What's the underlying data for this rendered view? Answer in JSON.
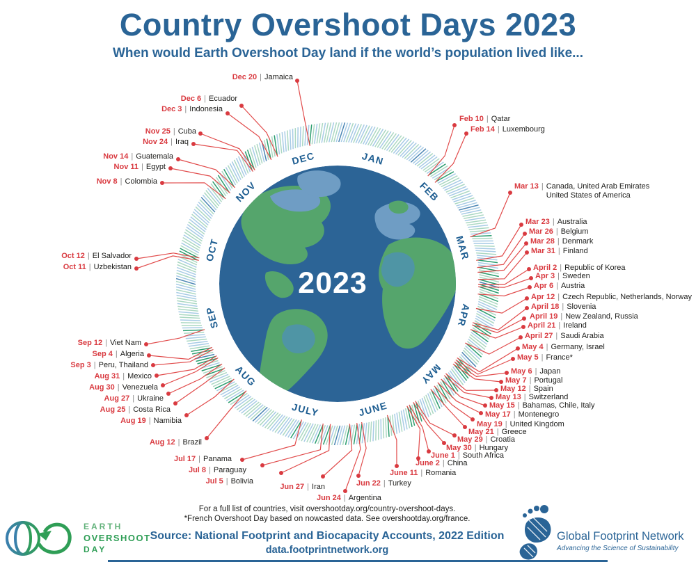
{
  "title": "Country Overshoot Days 2023",
  "subtitle": "When would Earth Overshoot Day land if the world’s population lived like...",
  "center_year": "2023",
  "chart_data": {
    "type": "radial-calendar",
    "year": 2023,
    "months": [
      {
        "label": "JAN",
        "mid_day": 16,
        "flip": false
      },
      {
        "label": "FEB",
        "mid_day": 45.5,
        "flip": false
      },
      {
        "label": "MAR",
        "mid_day": 75,
        "flip": false
      },
      {
        "label": "APR",
        "mid_day": 105.5,
        "flip": false
      },
      {
        "label": "MAY",
        "mid_day": 136,
        "flip": false
      },
      {
        "label": "JUNE",
        "mid_day": 166.5,
        "flip": true
      },
      {
        "label": "JULY",
        "mid_day": 197,
        "flip": true
      },
      {
        "label": "AUG",
        "mid_day": 228,
        "flip": true
      },
      {
        "label": "SEP",
        "mid_day": 258.5,
        "flip": false
      },
      {
        "label": "OCT",
        "mid_day": 289,
        "flip": false
      },
      {
        "label": "NOV",
        "mid_day": 319.5,
        "flip": false
      },
      {
        "label": "DEC",
        "mid_day": 349.5,
        "flip": false
      }
    ],
    "month_start_days": [
      1,
      32,
      60,
      91,
      121,
      152,
      182,
      213,
      244,
      274,
      305,
      335
    ],
    "entries": [
      {
        "date": "Dec 20",
        "day": 354,
        "countries": "Jamaica",
        "align": "right",
        "dot": [
          427,
          116
        ],
        "text": [
          421,
          112
        ]
      },
      {
        "date": "Dec 6",
        "day": 340,
        "countries": "Ecuador",
        "align": "right",
        "dot": [
          347,
          152
        ],
        "text": [
          341,
          143
        ]
      },
      {
        "date": "Dec 3",
        "day": 337,
        "countries": "Indonesia",
        "align": "right",
        "dot": [
          327,
          163
        ],
        "text": [
          320,
          158
        ]
      },
      {
        "date": "Nov 25",
        "day": 329,
        "countries": "Cuba",
        "align": "right",
        "dot": [
          288,
          192
        ],
        "text": [
          282,
          190
        ]
      },
      {
        "date": "Nov 24",
        "day": 328,
        "countries": "Iraq",
        "align": "right",
        "dot": [
          278,
          207
        ],
        "text": [
          271,
          205
        ]
      },
      {
        "date": "Nov 14",
        "day": 318,
        "countries": "Guatemala",
        "align": "right",
        "dot": [
          256,
          229
        ],
        "text": [
          249,
          226
        ]
      },
      {
        "date": "Nov 11",
        "day": 315,
        "countries": "Egypt",
        "align": "right",
        "dot": [
          245,
          242
        ],
        "text": [
          238,
          241
        ]
      },
      {
        "date": "Nov 8",
        "day": 312,
        "countries": "Colombia",
        "align": "right",
        "dot": [
          233,
          263
        ],
        "text": [
          226,
          262
        ]
      },
      {
        "date": "Oct 12",
        "day": 285,
        "countries": "El Salvador",
        "align": "right",
        "dot": [
          196,
          372
        ],
        "text": [
          189,
          369
        ]
      },
      {
        "date": "Oct 11",
        "day": 284,
        "countries": "Uzbekistan",
        "align": "right",
        "dot": [
          196,
          386
        ],
        "text": [
          189,
          385
        ]
      },
      {
        "date": "Sep 12",
        "day": 255,
        "countries": "Viet Nam",
        "align": "right",
        "dot": [
          210,
          495
        ],
        "text": [
          203,
          494
        ]
      },
      {
        "date": "Sep 4",
        "day": 247,
        "countries": "Algeria",
        "align": "right",
        "dot": [
          214,
          511
        ],
        "text": [
          207,
          510
        ]
      },
      {
        "date": "Sep 3",
        "day": 246,
        "countries": "Peru, Thailand",
        "align": "right",
        "dot": [
          220,
          525
        ],
        "text": [
          213,
          526
        ]
      },
      {
        "date": "Aug 31",
        "day": 243,
        "countries": "Mexico",
        "align": "right",
        "dot": [
          225,
          540
        ],
        "text": [
          218,
          542
        ]
      },
      {
        "date": "Aug 30",
        "day": 242,
        "countries": "Venezuela",
        "align": "right",
        "dot": [
          234,
          554
        ],
        "text": [
          227,
          558
        ]
      },
      {
        "date": "Aug 27",
        "day": 239,
        "countries": "Ukraine",
        "align": "right",
        "dot": [
          242,
          566
        ],
        "text": [
          235,
          574
        ]
      },
      {
        "date": "Aug 25",
        "day": 237,
        "countries": "Costa Rica",
        "align": "right",
        "dot": [
          252,
          580
        ],
        "text": [
          245,
          590
        ]
      },
      {
        "date": "Aug 19",
        "day": 231,
        "countries": "Namibia",
        "align": "right",
        "dot": [
          268,
          597
        ],
        "text": [
          261,
          606
        ]
      },
      {
        "date": "Aug 12",
        "day": 224,
        "countries": "Brazil",
        "align": "right",
        "dot": [
          297,
          630
        ],
        "text": [
          290,
          637
        ]
      },
      {
        "date": "Jul 17",
        "day": 198,
        "countries": "Panama",
        "align": "right",
        "dot": [
          348,
          661
        ],
        "text": [
          333,
          661
        ]
      },
      {
        "date": "Jul 8",
        "day": 189,
        "countries": "Paraguay",
        "align": "right",
        "dot": [
          377,
          669
        ],
        "text": [
          354,
          677
        ]
      },
      {
        "date": "Jul 5",
        "day": 186,
        "countries": "Bolivia",
        "align": "right",
        "dot": [
          404,
          680
        ],
        "text": [
          364,
          693
        ]
      },
      {
        "date": "Jun 27",
        "day": 178,
        "countries": "Iran",
        "align": "right",
        "dot": [
          464,
          685
        ],
        "text": [
          467,
          701
        ]
      },
      {
        "date": "Jun 24",
        "day": 175,
        "countries": "Argentina",
        "align": "left",
        "dot": [
          496,
          706
        ],
        "text": [
          455,
          717
        ]
      },
      {
        "date": "Jun 22",
        "day": 173,
        "countries": "Turkey",
        "align": "left",
        "dot": [
          515,
          684
        ],
        "text": [
          512,
          696
        ]
      },
      {
        "date": "June 11",
        "day": 162,
        "countries": "Romania",
        "align": "left",
        "dot": [
          570,
          670
        ],
        "text": [
          560,
          681
        ]
      },
      {
        "date": "June 2",
        "day": 153,
        "countries": "China",
        "align": "left",
        "dot": [
          601,
          659
        ],
        "text": [
          597,
          667
        ]
      },
      {
        "date": "June 1",
        "day": 152,
        "countries": "South Africa",
        "align": "left",
        "dot": [
          616,
          649
        ],
        "text": [
          619,
          656
        ]
      },
      {
        "date": "May 30",
        "day": 150,
        "countries": "Hungary",
        "align": "left",
        "dot": [
          638,
          637
        ],
        "text": [
          641,
          645
        ]
      },
      {
        "date": "May 29",
        "day": 149,
        "countries": "Croatia",
        "align": "left",
        "dot": [
          653,
          626
        ],
        "text": [
          657,
          633
        ]
      },
      {
        "date": "May 21",
        "day": 141,
        "countries": "Greece",
        "align": "left",
        "dot": [
          668,
          614
        ],
        "text": [
          673,
          622
        ]
      },
      {
        "date": "May 19",
        "day": 139,
        "countries": "United Kingdom",
        "align": "left",
        "dot": [
          679,
          603
        ],
        "text": [
          685,
          611
        ]
      },
      {
        "date": "May 17",
        "day": 137,
        "countries": "Montenegro",
        "align": "left",
        "dot": [
          691,
          594
        ],
        "text": [
          697,
          597
        ]
      },
      {
        "date": "May 15",
        "day": 135,
        "countries": "Bahamas, Chile, Italy",
        "align": "left",
        "dot": [
          697,
          583
        ],
        "text": [
          703,
          584
        ]
      },
      {
        "date": "May 13",
        "day": 133,
        "countries": "Switzerland",
        "align": "left",
        "dot": [
          706,
          572
        ],
        "text": [
          712,
          572
        ]
      },
      {
        "date": "May 12",
        "day": 132,
        "countries": "Spain",
        "align": "left",
        "dot": [
          713,
          561
        ],
        "text": [
          719,
          560
        ]
      },
      {
        "date": "May 7",
        "day": 127,
        "countries": "Portugal",
        "align": "left",
        "dot": [
          720,
          549
        ],
        "text": [
          726,
          548
        ]
      },
      {
        "date": "May 6",
        "day": 126,
        "countries": "Japan",
        "align": "left",
        "dot": [
          728,
          536
        ],
        "text": [
          734,
          535
        ]
      },
      {
        "date": "May 5",
        "day": 125,
        "countries": "France*",
        "align": "left",
        "dot": [
          737,
          516
        ],
        "text": [
          743,
          515
        ]
      },
      {
        "date": "May 4",
        "day": 124,
        "countries": "Germany, Israel",
        "align": "left",
        "dot": [
          744,
          501
        ],
        "text": [
          750,
          500
        ]
      },
      {
        "date": "April 27",
        "day": 117,
        "countries": "Saudi Arabia",
        "align": "left",
        "dot": [
          748,
          485
        ],
        "text": [
          754,
          484
        ]
      },
      {
        "date": "April 21",
        "day": 111,
        "countries": "Ireland",
        "align": "left",
        "dot": [
          752,
          470
        ],
        "text": [
          758,
          469
        ]
      },
      {
        "date": "April 19",
        "day": 109,
        "countries": "New Zealand, Russia",
        "align": "left",
        "dot": [
          753,
          458
        ],
        "text": [
          761,
          456
        ]
      },
      {
        "date": "April 18",
        "day": 108,
        "countries": "Slovenia",
        "align": "left",
        "dot": [
          757,
          443
        ],
        "text": [
          763,
          442
        ]
      },
      {
        "date": "Apr 12",
        "day": 102,
        "countries": "Czech Republic, Netherlands, Norway",
        "align": "left",
        "dot": [
          757,
          429
        ],
        "text": [
          763,
          428
        ]
      },
      {
        "date": "Apr 6",
        "day": 96,
        "countries": "Austria",
        "align": "left",
        "dot": [
          761,
          413
        ],
        "text": [
          767,
          412
        ]
      },
      {
        "date": "Apr 3",
        "day": 93,
        "countries": "Sweden",
        "align": "left",
        "dot": [
          763,
          400
        ],
        "text": [
          769,
          398
        ]
      },
      {
        "date": "April 2",
        "day": 92,
        "countries": "Republic of Korea",
        "align": "left",
        "dot": [
          760,
          387
        ],
        "text": [
          766,
          386
        ]
      },
      {
        "date": "Mar 31",
        "day": 90,
        "countries": "Finland",
        "align": "left",
        "dot": [
          757,
          363
        ],
        "text": [
          763,
          362
        ]
      },
      {
        "date": "Mar 28",
        "day": 87,
        "countries": "Denmark",
        "align": "left",
        "dot": [
          756,
          350
        ],
        "text": [
          762,
          348
        ]
      },
      {
        "date": "Mar 26",
        "day": 85,
        "countries": "Belgium",
        "align": "left",
        "dot": [
          754,
          336
        ],
        "text": [
          760,
          334
        ]
      },
      {
        "date": "Mar 23",
        "day": 82,
        "countries": "Australia",
        "align": "left",
        "dot": [
          749,
          323
        ],
        "text": [
          755,
          320
        ]
      },
      {
        "date": "Mar 13",
        "day": 72,
        "countries": "Canada, United Arab Emirates\nUnited States of America",
        "align": "left",
        "dot": [
          733,
          277
        ],
        "text": [
          739,
          269
        ]
      },
      {
        "date": "Feb 14",
        "day": 45,
        "countries": "Luxembourg",
        "align": "left",
        "dot": [
          670,
          192
        ],
        "text": [
          676,
          187
        ]
      },
      {
        "date": "Feb 10",
        "day": 41,
        "countries": "Qatar",
        "align": "left",
        "dot": [
          653,
          180
        ],
        "text": [
          660,
          172
        ]
      }
    ]
  },
  "footer": {
    "note1": "For a full list of countries, visit overshootday.org/country-overshoot-days.",
    "note2": "*French Overshoot Day based on nowcasted data. See overshootday.org/france.",
    "source": "Source: National Footprint and Biocapacity Accounts, 2022 Edition",
    "url": "data.footprintnetwork.org"
  },
  "logos": {
    "earth_overshoot_day": {
      "line1": "EARTH",
      "line2": "OVERSHOOT",
      "line3": "DAY"
    },
    "global_footprint_network": {
      "name": "Global Footprint Network",
      "tagline": "Advancing the Science of Sustainability"
    }
  },
  "colors": {
    "accent_blue": "#2a6496",
    "month_blue": "#1d5d91",
    "red": "#d93a40",
    "leader_red": "#e14b4b",
    "tick_blue": "#a7cbe5",
    "tick_green": "#abd8c2",
    "tick_dark_green": "#2a9d6e",
    "tick_dark_blue": "#4c86b4",
    "ocean": "#2c6496",
    "land_green": "#55a56c",
    "land_blue": "#6f9dc4",
    "land_teal": "#4f95a5",
    "logo_green": "#2f9e56"
  }
}
